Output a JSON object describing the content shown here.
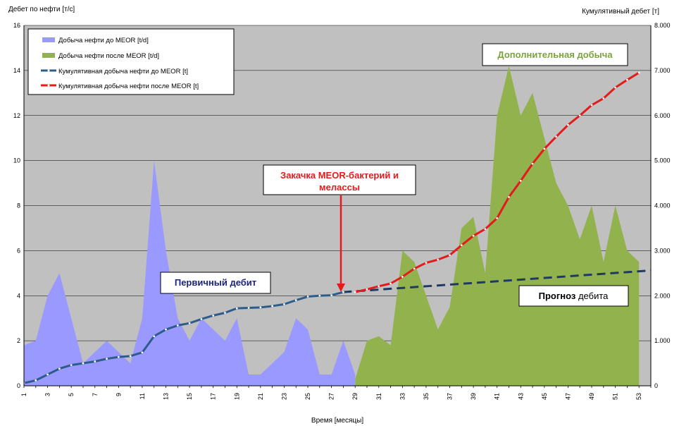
{
  "chart_data": {
    "type": "area",
    "title": "",
    "ylabel_left": "Дебет по нефти [т/с]",
    "ylabel_right": "Кумулятивный дебет [т]",
    "xlabel": "Время [месяцы]",
    "ylim_left": [
      0,
      16
    ],
    "yticks_left": [
      "0",
      "2",
      "4",
      "6",
      "8",
      "10",
      "12",
      "14",
      "16"
    ],
    "ylim_right": [
      0,
      8000
    ],
    "yticks_right": [
      "0",
      "1.000",
      "2.000",
      "3.000",
      "4.000",
      "5.000",
      "6.000",
      "7.000",
      "8.000"
    ],
    "x_range": [
      1,
      54
    ],
    "xticks": [
      "1",
      "3",
      "5",
      "7",
      "9",
      "11",
      "13",
      "15",
      "17",
      "19",
      "21",
      "23",
      "25",
      "27",
      "29",
      "31",
      "33",
      "35",
      "37",
      "39",
      "41",
      "43",
      "45",
      "47",
      "49",
      "51",
      "53"
    ],
    "grid": true,
    "legend_position": "top-left",
    "series": [
      {
        "name": "Добыча нефти до MEOR  [t/d]",
        "kind": "area",
        "axis": "left",
        "color": "#9999ff",
        "x": [
          1,
          2,
          3,
          4,
          5,
          6,
          7,
          8,
          9,
          10,
          11,
          12,
          13,
          14,
          15,
          16,
          17,
          18,
          19,
          20,
          21,
          22,
          23,
          24,
          25,
          26,
          27,
          28,
          29
        ],
        "values": [
          1.8,
          2,
          4,
          5,
          3,
          1,
          1.5,
          2,
          1.5,
          1,
          3,
          10,
          6,
          3,
          2,
          3,
          2.5,
          2,
          3,
          0.5,
          0.5,
          1,
          1.5,
          3,
          2.5,
          0.5,
          0.5,
          2,
          0.5
        ]
      },
      {
        "name": "Добыча нефти после MEOR  [t/d]",
        "kind": "area",
        "axis": "left",
        "color": "#92b24e",
        "x": [
          29,
          30,
          31,
          32,
          33,
          34,
          35,
          36,
          37,
          38,
          39,
          40,
          41,
          42,
          43,
          44,
          45,
          46,
          47,
          48,
          49,
          50,
          51,
          52,
          53
        ],
        "values": [
          0.3,
          2,
          2.2,
          1.8,
          6,
          5.5,
          4,
          2.5,
          3.5,
          7,
          7.5,
          5,
          12,
          14.2,
          12,
          13,
          11,
          9,
          8,
          6.5,
          8,
          5.5,
          8,
          6,
          5.5
        ]
      },
      {
        "name": "Кумулятивная добыча нефти до MEOR [t]",
        "kind": "line",
        "axis": "right",
        "color": "#2e5c8a",
        "x": [
          1,
          2,
          3,
          4,
          5,
          6,
          7,
          8,
          9,
          10,
          11,
          12,
          13,
          14,
          15,
          16,
          17,
          18,
          19,
          20,
          21,
          22,
          23,
          24,
          25,
          26,
          27,
          28
        ],
        "values": [
          60,
          120,
          250,
          380,
          460,
          500,
          540,
          600,
          640,
          660,
          740,
          1100,
          1250,
          1340,
          1390,
          1480,
          1560,
          1620,
          1720,
          1730,
          1740,
          1770,
          1810,
          1900,
          1980,
          2000,
          2010,
          2080
        ]
      },
      {
        "name": "Кумулятивная добыча нефти после MEOR [t]",
        "kind": "line",
        "axis": "right",
        "color": "#e31b1b",
        "x": [
          29,
          30,
          31,
          32,
          33,
          34,
          35,
          36,
          37,
          38,
          39,
          40,
          41,
          42,
          43,
          44,
          45,
          46,
          47,
          48,
          49,
          50,
          51,
          52,
          53
        ],
        "values": [
          2080,
          2140,
          2210,
          2270,
          2420,
          2600,
          2730,
          2800,
          2900,
          3120,
          3330,
          3480,
          3720,
          4190,
          4550,
          4930,
          5260,
          5530,
          5790,
          6000,
          6230,
          6380,
          6620,
          6790,
          6950
        ]
      },
      {
        "name": "",
        "kind": "dashed-line",
        "axis": "right",
        "color": "#1f3864",
        "x": [
          28,
          54
        ],
        "values": [
          2080,
          2560
        ]
      }
    ],
    "annotations": {
      "injection": [
        "Закачка MEOR-бактерий и",
        "мелассы"
      ],
      "additional": "Дополнительная добыча",
      "primary": "Первичный дебит",
      "forecast_bold": "Прогноз",
      "forecast_rest": " дебита"
    }
  }
}
